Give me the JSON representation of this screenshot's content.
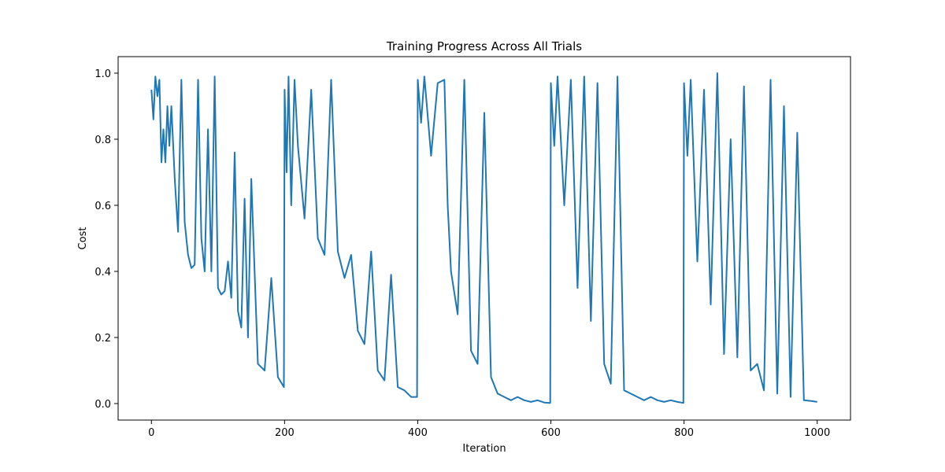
{
  "chart_data": {
    "type": "line",
    "title": "Training Progress Across All Trials",
    "xlabel": "Iteration",
    "ylabel": "Cost",
    "xlim": [
      -50,
      1050
    ],
    "ylim": [
      -0.05,
      1.05
    ],
    "xticks": [
      0,
      200,
      400,
      600,
      800,
      1000
    ],
    "yticks": [
      0.0,
      0.2,
      0.4,
      0.6,
      0.8,
      1.0
    ],
    "xtick_labels": [
      "0",
      "200",
      "400",
      "600",
      "800",
      "1000"
    ],
    "ytick_labels": [
      "0.0",
      "0.2",
      "0.4",
      "0.6",
      "0.8",
      "1.0"
    ],
    "grid": false,
    "line_color": "#1f77b4",
    "series": [
      {
        "x": [
          0,
          3,
          6,
          9,
          12,
          15,
          18,
          21,
          24,
          27,
          30,
          35,
          40,
          45,
          50,
          55,
          60,
          65,
          70,
          75,
          80,
          85,
          90,
          95,
          100,
          105,
          110,
          115,
          120,
          125,
          130,
          135,
          140,
          145,
          150,
          160,
          170,
          180,
          190,
          199,
          200,
          203,
          206,
          210,
          215,
          220,
          230,
          240,
          250,
          260,
          270,
          280,
          290,
          300,
          310,
          320,
          330,
          340,
          350,
          360,
          370,
          380,
          390,
          399,
          400,
          405,
          410,
          420,
          430,
          440,
          445,
          450,
          460,
          470,
          480,
          490,
          500,
          510,
          520,
          530,
          540,
          550,
          560,
          570,
          580,
          590,
          599,
          600,
          605,
          610,
          620,
          630,
          640,
          650,
          660,
          670,
          680,
          690,
          700,
          710,
          720,
          730,
          740,
          750,
          760,
          770,
          780,
          790,
          799,
          800,
          805,
          810,
          820,
          830,
          840,
          850,
          860,
          870,
          880,
          890,
          900,
          910,
          920,
          930,
          940,
          950,
          960,
          970,
          980,
          990,
          1000
        ],
        "y": [
          0.95,
          0.86,
          0.99,
          0.93,
          0.98,
          0.73,
          0.83,
          0.73,
          0.9,
          0.78,
          0.9,
          0.68,
          0.52,
          0.98,
          0.55,
          0.45,
          0.41,
          0.42,
          0.98,
          0.5,
          0.4,
          0.83,
          0.4,
          0.99,
          0.35,
          0.33,
          0.34,
          0.43,
          0.32,
          0.76,
          0.28,
          0.23,
          0.62,
          0.2,
          0.68,
          0.12,
          0.1,
          0.38,
          0.08,
          0.05,
          0.95,
          0.7,
          0.99,
          0.6,
          0.98,
          0.78,
          0.56,
          0.95,
          0.5,
          0.45,
          0.98,
          0.46,
          0.38,
          0.45,
          0.22,
          0.18,
          0.46,
          0.1,
          0.07,
          0.39,
          0.05,
          0.04,
          0.02,
          0.02,
          0.98,
          0.85,
          0.99,
          0.75,
          0.97,
          0.98,
          0.6,
          0.4,
          0.27,
          0.98,
          0.16,
          0.12,
          0.88,
          0.08,
          0.03,
          0.02,
          0.01,
          0.02,
          0.01,
          0.005,
          0.01,
          0.003,
          0.002,
          0.97,
          0.78,
          0.99,
          0.6,
          0.98,
          0.35,
          0.99,
          0.25,
          0.97,
          0.12,
          0.06,
          0.99,
          0.04,
          0.03,
          0.02,
          0.01,
          0.02,
          0.01,
          0.005,
          0.01,
          0.005,
          0.002,
          0.97,
          0.75,
          0.98,
          0.43,
          0.95,
          0.3,
          1.0,
          0.15,
          0.8,
          0.14,
          0.96,
          0.1,
          0.12,
          0.04,
          0.98,
          0.03,
          0.9,
          0.02,
          0.82,
          0.01,
          0.008,
          0.005
        ]
      }
    ]
  }
}
